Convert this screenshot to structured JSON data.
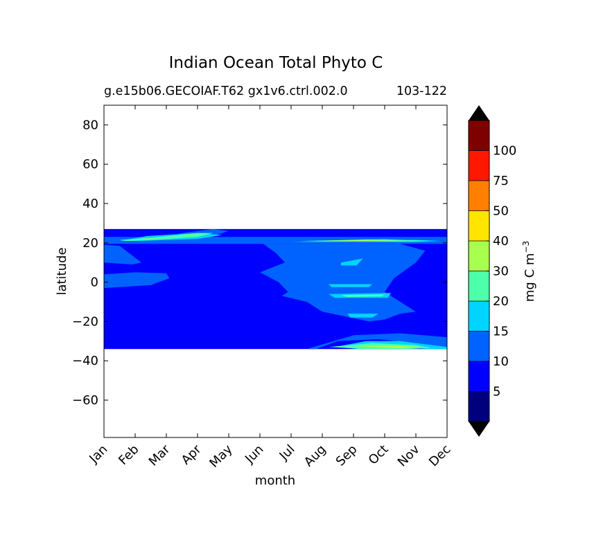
{
  "chart_data": {
    "type": "heatmap",
    "title": "Indian Ocean Total Phyto C",
    "subtitle_left": "g.e15b06.GECOIAF.T62 gx1v6.ctrl.002.0",
    "subtitle_right": "103-122",
    "xlabel": "month",
    "ylabel": "latitude",
    "xlim": [
      0,
      11
    ],
    "ylim": [
      -79,
      90
    ],
    "x_ticks": [
      "Jan",
      "Feb",
      "Mar",
      "Apr",
      "May",
      "Jun",
      "Jul",
      "Aug",
      "Sep",
      "Oct",
      "Nov",
      "Dec"
    ],
    "y_ticks": [
      80,
      60,
      40,
      20,
      0,
      -20,
      -40,
      -60
    ],
    "y_tick_labels": [
      "80",
      "60",
      "40",
      "20",
      "0",
      "−20",
      "−40",
      "−60"
    ],
    "data_lat_range": [
      -34,
      27
    ],
    "colorbar": {
      "label": "mg C m",
      "label_exp": "−3",
      "tick_labels": [
        "5",
        "10",
        "15",
        "20",
        "30",
        "40",
        "50",
        "75",
        "100"
      ],
      "colors": [
        "#00007f",
        "#0000ff",
        "#0063ff",
        "#00d4ff",
        "#4effa9",
        "#a9ff4e",
        "#ffe500",
        "#ff7f00",
        "#ff1800",
        "#7f0000"
      ],
      "under_color": "#000000",
      "over_color": "#000000"
    },
    "regions": [
      {
        "level": 1,
        "x": [
          0,
          11,
          11,
          0
        ],
        "y": [
          -34,
          -34,
          27,
          27
        ]
      },
      {
        "level": 2,
        "x": [
          0,
          11,
          11,
          0
        ],
        "y": [
          19.5,
          19.5,
          23,
          23
        ]
      },
      {
        "level": 2,
        "x": [
          0,
          0.5,
          1.2,
          0.9,
          0
        ],
        "y": [
          19,
          18.5,
          10,
          9,
          10
        ]
      },
      {
        "level": 2,
        "x": [
          0,
          1,
          2,
          2.1,
          1.5,
          0.5,
          0
        ],
        "y": [
          4,
          5,
          4.5,
          2,
          -1.5,
          -2.5,
          -3
        ]
      },
      {
        "level": 2,
        "x": [
          1.6,
          2.5,
          3.5,
          4,
          3.4,
          2.5
        ],
        "y": [
          22,
          25,
          27,
          26,
          23,
          22
        ]
      },
      {
        "level": 2,
        "x": [
          5.1,
          5.5,
          5.8,
          5.0,
          5.6,
          5.9,
          5.7,
          6.5,
          7,
          8.5,
          9,
          9.5,
          10,
          9.5,
          9,
          9.3,
          10,
          10.3,
          9.5,
          8.5,
          7.5,
          6.5,
          6
        ],
        "y": [
          19.5,
          15,
          10,
          5,
          0,
          -5,
          -7,
          -10,
          -15,
          -20,
          -19,
          -16,
          -15,
          -10,
          -5,
          2,
          10,
          16,
          19.5,
          19.5,
          19.5,
          19.5,
          19.5
        ]
      },
      {
        "level": 2,
        "x": [
          6.5,
          8,
          9.5,
          11,
          11,
          10,
          8.8,
          7.5,
          6.8
        ],
        "y": [
          -34,
          -27,
          -26,
          -28,
          -34,
          -31,
          -29,
          -30,
          -34
        ]
      },
      {
        "level": 3,
        "x": [
          0.5,
          1.4,
          3,
          3.8,
          3,
          1.2
        ],
        "y": [
          21,
          23.5,
          25,
          24,
          22,
          21
        ]
      },
      {
        "level": 3,
        "x": [
          6,
          8,
          10,
          10.8,
          10,
          8,
          6.5
        ],
        "y": [
          20.5,
          21,
          21.5,
          21,
          20.4,
          20.5,
          20.4
        ]
      },
      {
        "level": 3,
        "x": [
          7.6,
          8.3,
          8.1,
          7.6
        ],
        "y": [
          10,
          12,
          8.5,
          8.5
        ]
      },
      {
        "level": 3,
        "x": [
          7.2,
          9.2,
          9.1,
          7.4
        ],
        "y": [
          -6,
          -5.5,
          -8,
          -8
        ]
      },
      {
        "level": 3,
        "x": [
          7.2,
          8.6,
          8.5,
          7.3
        ],
        "y": [
          -1,
          -1,
          -2.5,
          -2.5
        ]
      },
      {
        "level": 3,
        "x": [
          7.8,
          8.8,
          8.6,
          7.9
        ],
        "y": [
          -16,
          -16,
          -18,
          -18
        ]
      },
      {
        "level": 3,
        "x": [
          7.4,
          8.4,
          9.5,
          10.5,
          11,
          11,
          10.4,
          9.5,
          8.2
        ],
        "y": [
          -33,
          -30,
          -30,
          -32,
          -33,
          -34,
          -34,
          -33,
          -34
        ]
      },
      {
        "level": 4,
        "x": [
          0.5,
          1.5,
          3,
          3.5,
          3,
          1.5,
          0.8
        ],
        "y": [
          21.5,
          22.5,
          25,
          25,
          23,
          21.5,
          21
        ]
      },
      {
        "level": 4,
        "x": [
          6.3,
          9,
          10.5,
          9.5,
          7
        ],
        "y": [
          21,
          21.8,
          21,
          20.7,
          20.8
        ]
      },
      {
        "level": 4,
        "x": [
          7.6,
          9.0,
          8.9,
          7.8
        ],
        "y": [
          -6.5,
          -6.3,
          -7.2,
          -7.5
        ]
      },
      {
        "level": 4,
        "x": [
          7.2,
          8.6,
          10,
          10.5,
          9.7,
          8.4
        ],
        "y": [
          -33,
          -31,
          -32,
          -33.5,
          -34,
          -34
        ]
      },
      {
        "level": 5,
        "x": [
          1.0,
          2.0,
          3.0,
          2.8,
          1.5
        ],
        "y": [
          22,
          22.8,
          24.5,
          24,
          22.2
        ]
      },
      {
        "level": 5,
        "x": [
          7.0,
          8.5,
          9.4,
          8.2
        ],
        "y": [
          21.1,
          21.7,
          21.2,
          21.0
        ]
      },
      {
        "level": 5,
        "x": [
          8.0,
          9.3,
          10.2,
          9.5
        ],
        "y": [
          -32.5,
          -32.2,
          -33,
          -33.6
        ]
      }
    ]
  }
}
